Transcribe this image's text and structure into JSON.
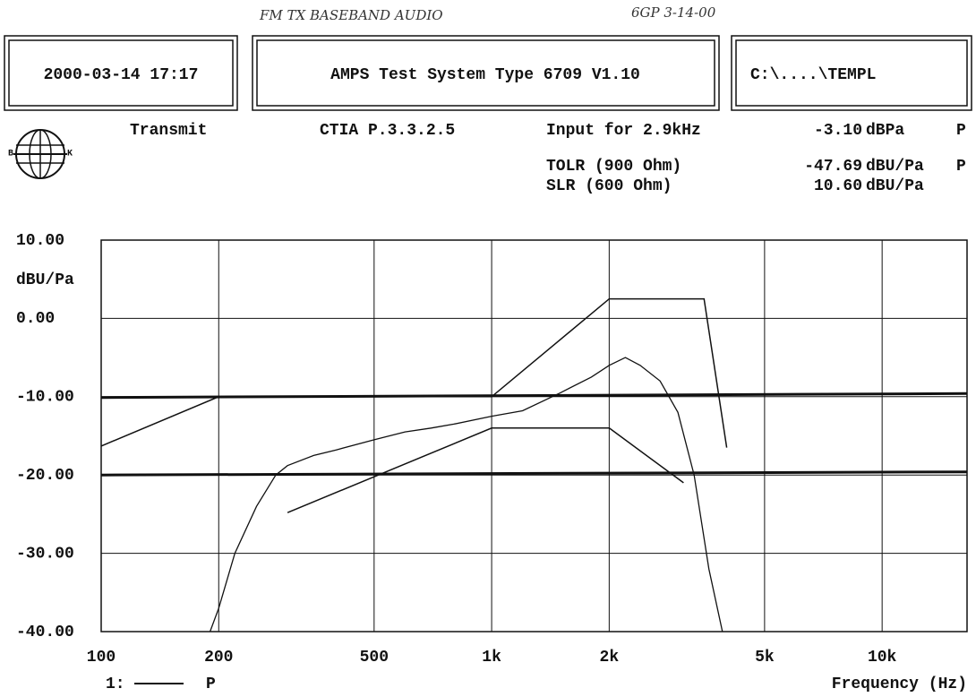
{
  "notes": [
    "FM TX BASEBAND AUDIO",
    "6GP 3-14-00"
  ],
  "header": {
    "boxes": [
      "2000-03-14 17:17",
      "AMPS Test System Type 6709 V1.10",
      "C:\\....\\TEMPL"
    ],
    "mode": "Transmit",
    "standard": "CTIA P.3.3.2.5",
    "readings": [
      {
        "label": "Input for 2.9kHz",
        "value": "-3.10",
        "unit": "dBPa",
        "flag": "P"
      },
      {
        "label": "TOLR (900 Ohm)",
        "value": "-47.69",
        "unit": "dBU/Pa",
        "flag": "P"
      },
      {
        "label": "SLR (600 Ohm)",
        "value": "10.60",
        "unit": "dBU/Pa"
      }
    ]
  },
  "chart_data": {
    "type": "line",
    "log_x": true,
    "grid": true,
    "y_unit": "dBU/Pa",
    "x_label": "Frequency (Hz)",
    "legend": {
      "label": "1:",
      "suffix": "P"
    },
    "xlim": [
      100,
      16500
    ],
    "xticks": [
      100,
      200,
      500,
      {
        "value": 1000,
        "label": "1k"
      },
      {
        "value": 2000,
        "label": "2k"
      },
      {
        "value": 5000,
        "label": "5k"
      },
      {
        "value": 10000,
        "label": "10k"
      }
    ],
    "ylim": [
      -40,
      10
    ],
    "yticks": [
      {
        "value": 10,
        "label": "10.00"
      },
      {
        "value": 0,
        "label": "0.00"
      },
      {
        "value": -10,
        "label": "-10.00"
      },
      {
        "value": -20,
        "label": "-20.00"
      },
      {
        "value": -30,
        "label": "-30.00"
      },
      {
        "value": -40,
        "label": "-40.00"
      }
    ],
    "series": [
      {
        "color": "#111",
        "width": 1.5,
        "x": [
          100,
          200,
          1000,
          2000,
          3500,
          4000
        ],
        "values": [
          -16.3,
          -10,
          -10,
          2.5,
          2.5,
          -16.5
        ]
      },
      {
        "color": "#111",
        "width": 1.5,
        "x": [
          300,
          1000,
          2000,
          3100
        ],
        "values": [
          -24.8,
          -14,
          -14,
          -21
        ]
      },
      {
        "color": "#111",
        "width": 3,
        "x": [
          100,
          16500
        ],
        "values": [
          -10.1,
          -9.6
        ]
      },
      {
        "color": "#111",
        "width": 3,
        "x": [
          100,
          16500
        ],
        "values": [
          -20,
          -19.6
        ]
      },
      {
        "color": "#111",
        "width": 1.3,
        "x": [
          190,
          200,
          220,
          250,
          280,
          300,
          350,
          400,
          500,
          600,
          700,
          800,
          1000,
          1200,
          1500,
          1800,
          2000,
          2200,
          2400,
          2700,
          3000,
          3300,
          3600,
          3900
        ],
        "values": [
          -40,
          -37,
          -30,
          -24,
          -20,
          -18.8,
          -17.5,
          -16.8,
          -15.5,
          -14.5,
          -14,
          -13.5,
          -12.5,
          -11.8,
          -9.5,
          -7.5,
          -6,
          -5,
          -6,
          -8,
          -12,
          -20,
          -32,
          -40
        ]
      }
    ]
  }
}
